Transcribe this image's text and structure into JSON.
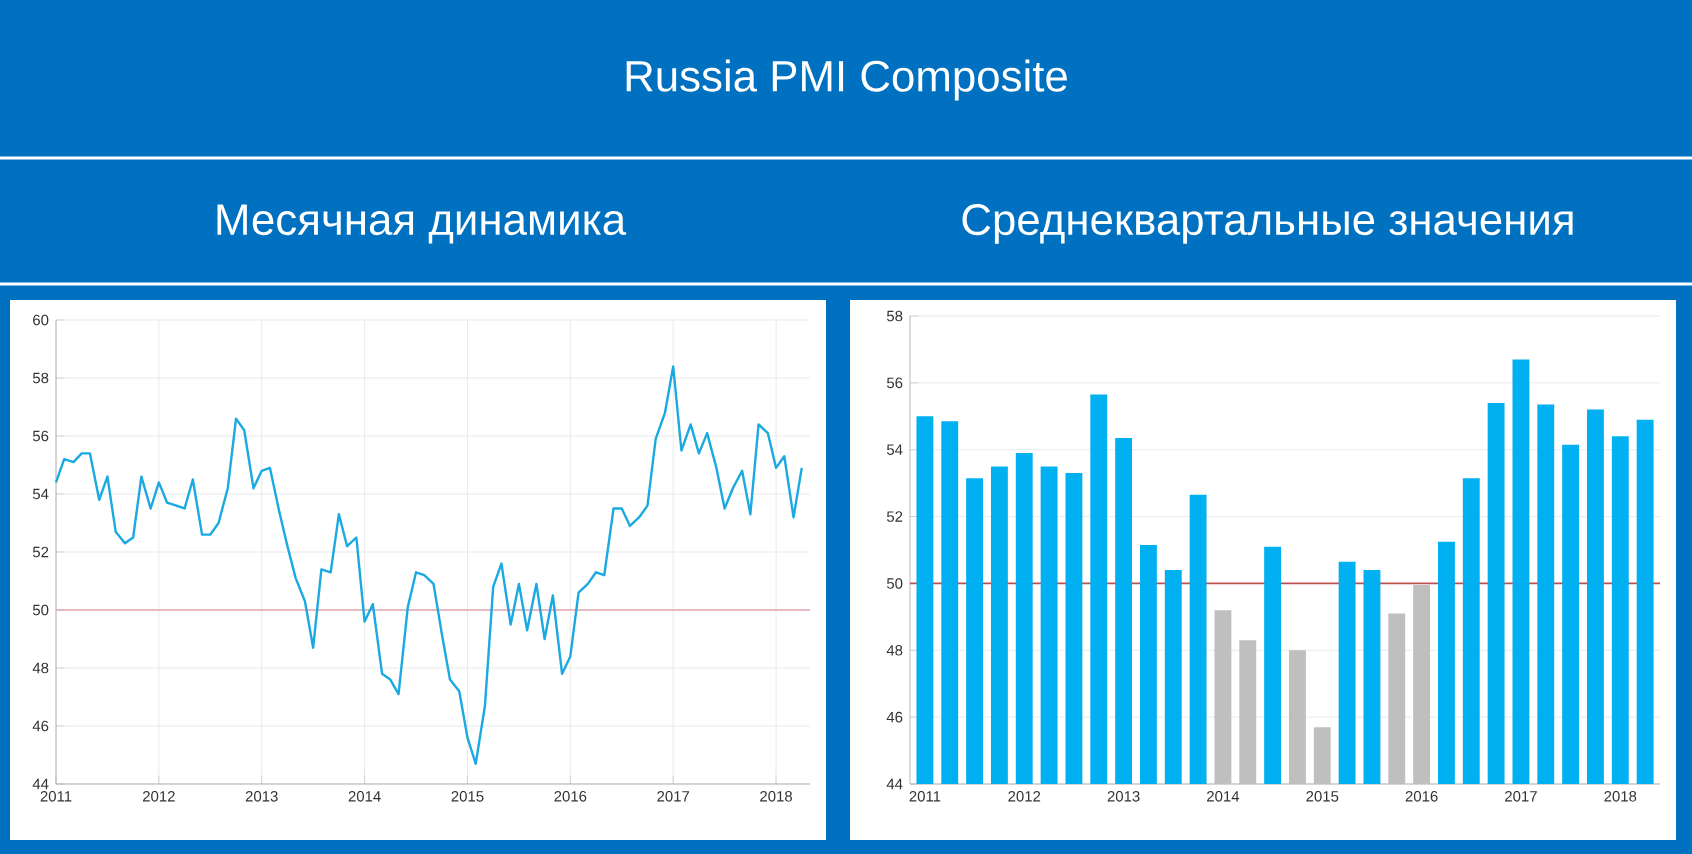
{
  "chart_data": [
    {
      "type": "line",
      "title": "Russia PMI Composite",
      "subtitle": "Месячная динамика",
      "x": [
        "2011-01",
        "2011-02",
        "2011-03",
        "2011-04",
        "2011-05",
        "2011-06",
        "2011-07",
        "2011-08",
        "2011-09",
        "2011-10",
        "2011-11",
        "2011-12",
        "2012-01",
        "2012-02",
        "2012-03",
        "2012-04",
        "2012-05",
        "2012-06",
        "2012-07",
        "2012-08",
        "2012-09",
        "2012-10",
        "2012-11",
        "2012-12",
        "2013-01",
        "2013-02",
        "2013-03",
        "2013-04",
        "2013-05",
        "2013-06",
        "2013-07",
        "2013-08",
        "2013-09",
        "2013-10",
        "2013-11",
        "2013-12",
        "2014-01",
        "2014-02",
        "2014-03",
        "2014-04",
        "2014-05",
        "2014-06",
        "2014-07",
        "2014-08",
        "2014-09",
        "2014-10",
        "2014-11",
        "2014-12",
        "2015-01",
        "2015-02",
        "2015-03",
        "2015-04",
        "2015-05",
        "2015-06",
        "2015-07",
        "2015-08",
        "2015-09",
        "2015-10",
        "2015-11",
        "2015-12",
        "2016-01",
        "2016-02",
        "2016-03",
        "2016-04",
        "2016-05",
        "2016-06",
        "2016-07",
        "2016-08",
        "2016-09",
        "2016-10",
        "2016-11",
        "2016-12",
        "2017-01",
        "2017-02",
        "2017-03",
        "2017-04",
        "2017-05",
        "2017-06",
        "2017-07",
        "2017-08",
        "2017-09",
        "2017-10",
        "2017-11",
        "2017-12",
        "2018-01",
        "2018-02",
        "2018-03",
        "2018-04"
      ],
      "values": [
        54.4,
        55.2,
        55.1,
        55.4,
        55.4,
        53.8,
        54.6,
        52.7,
        52.3,
        52.5,
        54.6,
        53.5,
        54.4,
        53.7,
        53.6,
        53.5,
        54.5,
        52.6,
        52.6,
        53.0,
        54.2,
        56.6,
        56.2,
        54.2,
        54.8,
        54.9,
        53.4,
        52.2,
        51.1,
        50.3,
        48.7,
        51.4,
        51.3,
        53.3,
        52.2,
        52.5,
        49.6,
        50.2,
        47.8,
        47.6,
        47.1,
        50.1,
        51.3,
        51.2,
        50.9,
        49.2,
        47.6,
        47.2,
        45.6,
        44.7,
        46.7,
        50.8,
        51.6,
        49.5,
        50.9,
        49.3,
        50.9,
        49.0,
        50.5,
        47.8,
        48.4,
        50.6,
        50.9,
        51.3,
        51.2,
        53.5,
        53.5,
        52.9,
        53.2,
        53.6,
        55.9,
        56.8,
        58.4,
        55.5,
        56.4,
        55.4,
        56.1,
        54.9,
        53.5,
        54.2,
        54.8,
        53.3,
        56.4,
        56.1,
        54.9,
        55.3,
        53.2,
        54.9
      ],
      "color": "#1aa9e1",
      "xlim": [
        "2011-01",
        "2018-05"
      ],
      "ylim": [
        44,
        60
      ],
      "xticks": [
        {
          "value": "2011-01",
          "label": "2011"
        },
        {
          "value": "2012-01",
          "label": "2012"
        },
        {
          "value": "2013-01",
          "label": "2013"
        },
        {
          "value": "2014-01",
          "label": "2014"
        },
        {
          "value": "2015-01",
          "label": "2015"
        },
        {
          "value": "2016-01",
          "label": "2016"
        },
        {
          "value": "2017-01",
          "label": "2017"
        },
        {
          "value": "2018-01",
          "label": "2018"
        }
      ],
      "yticks": [
        44,
        46,
        48,
        50,
        52,
        54,
        56,
        58,
        60
      ],
      "grid": true,
      "ref_lines": [
        {
          "axis": "y",
          "value": 50,
          "color": "#e3a6b0"
        }
      ]
    },
    {
      "type": "bar",
      "subtitle": "Среднеквартальные значения",
      "categories": [
        "2011",
        null,
        null,
        null,
        "2012",
        null,
        null,
        null,
        "2013",
        null,
        null,
        null,
        "2014",
        null,
        null,
        null,
        "2015",
        null,
        null,
        null,
        "2016",
        null,
        null,
        null,
        "2017",
        null,
        null,
        null,
        "2018",
        null
      ],
      "values": [
        55.0,
        54.85,
        53.15,
        53.5,
        53.9,
        53.5,
        53.3,
        55.65,
        54.35,
        51.15,
        50.4,
        52.65,
        49.2,
        48.3,
        51.1,
        48.0,
        45.7,
        50.65,
        50.4,
        49.1,
        49.95,
        51.25,
        53.15,
        55.4,
        56.7,
        55.35,
        54.15,
        55.2,
        54.4,
        54.9
      ],
      "colors": [
        "#00b0f0",
        "#00b0f0",
        "#00b0f0",
        "#00b0f0",
        "#00b0f0",
        "#00b0f0",
        "#00b0f0",
        "#00b0f0",
        "#00b0f0",
        "#00b0f0",
        "#00b0f0",
        "#00b0f0",
        "#bfbfbf",
        "#bfbfbf",
        "#00b0f0",
        "#bfbfbf",
        "#bfbfbf",
        "#00b0f0",
        "#00b0f0",
        "#bfbfbf",
        "#bfbfbf",
        "#00b0f0",
        "#00b0f0",
        "#00b0f0",
        "#00b0f0",
        "#00b0f0",
        "#00b0f0",
        "#00b0f0",
        "#00b0f0",
        "#00b0f0"
      ],
      "ylim": [
        44,
        58
      ],
      "yticks": [
        44,
        46,
        48,
        50,
        52,
        54,
        56,
        58
      ],
      "grid": "y",
      "ref_lines": [
        {
          "axis": "y",
          "value": 50,
          "color": "#c0504d"
        }
      ]
    }
  ]
}
